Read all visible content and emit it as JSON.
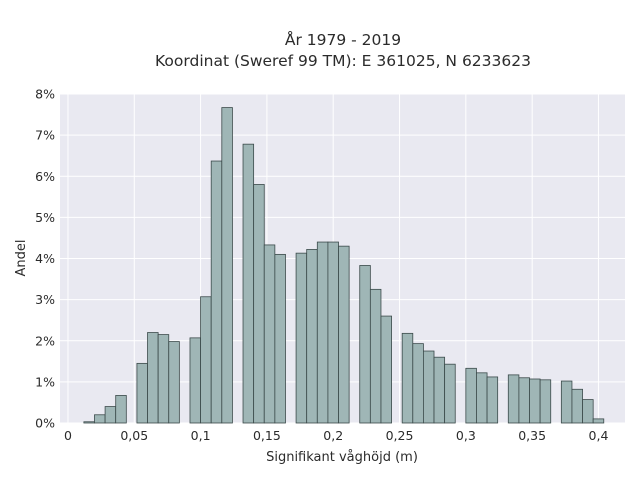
{
  "chart_data": {
    "type": "bar",
    "title_line1": "År 1979 - 2019",
    "title_line2": "Koordinat (Sweref 99 TM): E 361025, N 6233623",
    "xlabel": "Signifikant våghöjd (m)",
    "ylabel": "Andel",
    "xlim": [
      -0.006,
      0.42
    ],
    "ylim": [
      0,
      8
    ],
    "x_ticks": [
      {
        "value": 0,
        "label": "0"
      },
      {
        "value": 0.05,
        "label": "0,05"
      },
      {
        "value": 0.1,
        "label": "0,1"
      },
      {
        "value": 0.15,
        "label": "0,15"
      },
      {
        "value": 0.2,
        "label": "0,2"
      },
      {
        "value": 0.25,
        "label": "0,25"
      },
      {
        "value": 0.3,
        "label": "0,3"
      },
      {
        "value": 0.35,
        "label": "0,35"
      },
      {
        "value": 0.4,
        "label": "0,4"
      }
    ],
    "y_ticks": [
      {
        "value": 0,
        "label": "0%"
      },
      {
        "value": 1,
        "label": "1%"
      },
      {
        "value": 2,
        "label": "2%"
      },
      {
        "value": 3,
        "label": "3%"
      },
      {
        "value": 4,
        "label": "4%"
      },
      {
        "value": 5,
        "label": "5%"
      },
      {
        "value": 6,
        "label": "6%"
      },
      {
        "value": 7,
        "label": "7%"
      },
      {
        "value": 8,
        "label": "8%"
      }
    ],
    "grid": true,
    "bar_width": 0.008,
    "bar_color": "#9fb6b6",
    "bar_edge_color": "#3b4a4a",
    "background_color": "#e9e9f1",
    "bars": [
      {
        "x": 0.016,
        "value": 0.03
      },
      {
        "x": 0.024,
        "value": 0.2
      },
      {
        "x": 0.032,
        "value": 0.4
      },
      {
        "x": 0.04,
        "value": 0.67
      },
      {
        "x": 0.056,
        "value": 1.45
      },
      {
        "x": 0.064,
        "value": 2.2
      },
      {
        "x": 0.072,
        "value": 2.15
      },
      {
        "x": 0.08,
        "value": 1.98
      },
      {
        "x": 0.096,
        "value": 2.07
      },
      {
        "x": 0.104,
        "value": 3.07
      },
      {
        "x": 0.112,
        "value": 6.37
      },
      {
        "x": 0.12,
        "value": 7.67
      },
      {
        "x": 0.136,
        "value": 6.78
      },
      {
        "x": 0.144,
        "value": 5.8
      },
      {
        "x": 0.152,
        "value": 4.33
      },
      {
        "x": 0.16,
        "value": 4.1
      },
      {
        "x": 0.176,
        "value": 4.13
      },
      {
        "x": 0.184,
        "value": 4.22
      },
      {
        "x": 0.192,
        "value": 4.4
      },
      {
        "x": 0.2,
        "value": 4.4
      },
      {
        "x": 0.208,
        "value": 4.3
      },
      {
        "x": 0.224,
        "value": 3.83
      },
      {
        "x": 0.232,
        "value": 3.25
      },
      {
        "x": 0.24,
        "value": 2.6
      },
      {
        "x": 0.256,
        "value": 2.18
      },
      {
        "x": 0.264,
        "value": 1.93
      },
      {
        "x": 0.272,
        "value": 1.75
      },
      {
        "x": 0.28,
        "value": 1.6
      },
      {
        "x": 0.288,
        "value": 1.43
      },
      {
        "x": 0.304,
        "value": 1.33
      },
      {
        "x": 0.312,
        "value": 1.22
      },
      {
        "x": 0.32,
        "value": 1.12
      },
      {
        "x": 0.336,
        "value": 1.17
      },
      {
        "x": 0.344,
        "value": 1.1
      },
      {
        "x": 0.352,
        "value": 1.07
      },
      {
        "x": 0.36,
        "value": 1.05
      },
      {
        "x": 0.376,
        "value": 1.02
      },
      {
        "x": 0.384,
        "value": 0.82
      },
      {
        "x": 0.392,
        "value": 0.57
      },
      {
        "x": 0.4,
        "value": 0.1
      }
    ]
  }
}
